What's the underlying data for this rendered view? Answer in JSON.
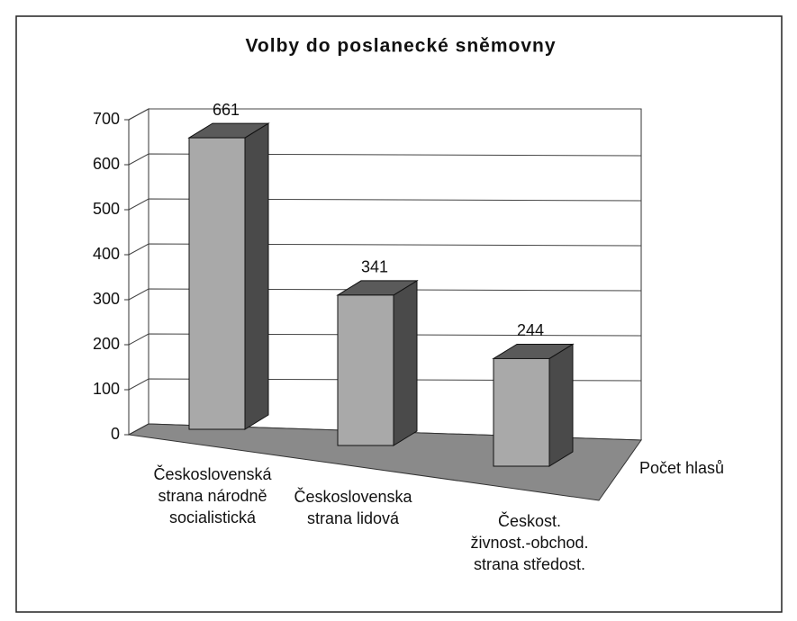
{
  "chart_data": {
    "type": "bar3d",
    "title": "Volby do poslanecké sněmovny",
    "categories": [
      [
        "Československá",
        "strana národně",
        "socialistická"
      ],
      [
        "Československa",
        "strana lidová"
      ],
      [
        "Českost.",
        "živnost.-obchod.",
        "strana středost."
      ]
    ],
    "series": [
      {
        "name": "Počet hlasů",
        "color": "#a9a9a9",
        "values": [
          661,
          341,
          244
        ]
      }
    ],
    "ylim": [
      0,
      700
    ],
    "yticks": [
      0,
      100,
      200,
      300,
      400,
      500,
      600,
      700
    ],
    "grid": true
  }
}
